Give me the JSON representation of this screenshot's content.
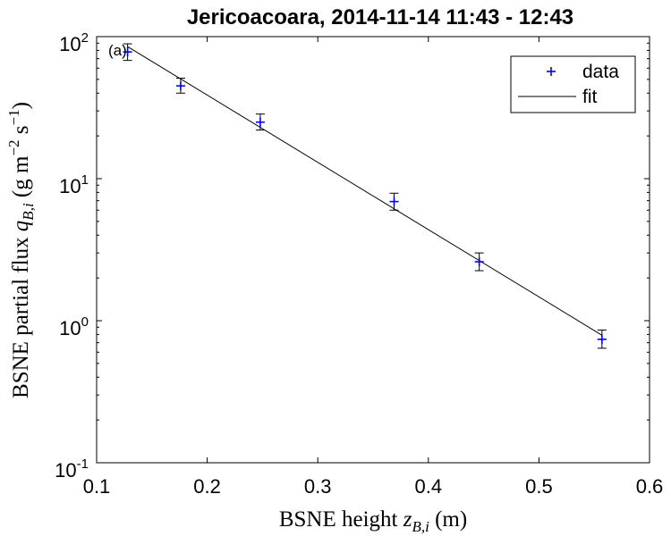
{
  "chart_data": {
    "type": "scatter",
    "title": "Jericoacoara, 2014-11-14 11:43 - 12:43",
    "panel_label": "(a)",
    "xlabel": {
      "prefix": "BSNE height ",
      "var": "z",
      "sub": "B,i",
      "suffix": " (m)"
    },
    "ylabel": {
      "prefix": "BSNE partial flux ",
      "var": "q",
      "sub": "B,i",
      "units_open": " (g m",
      "exp1": "−2",
      "units_mid": " s",
      "exp2": "−1",
      "units_close": ")"
    },
    "xlim": [
      0.1,
      0.6
    ],
    "ylim": [
      0.1,
      100
    ],
    "yscale": "log",
    "grid": false,
    "legend_position": "top-right",
    "x_ticks": [
      "0.1",
      "0.2",
      "0.3",
      "0.4",
      "0.5",
      "0.6"
    ],
    "y_ticks": [
      {
        "value": 0.1,
        "base": "10",
        "exp": "-1"
      },
      {
        "value": 1,
        "base": "10",
        "exp": "0"
      },
      {
        "value": 10,
        "base": "10",
        "exp": "1"
      },
      {
        "value": 100,
        "base": "10",
        "exp": "2"
      }
    ],
    "series": [
      {
        "name": "data",
        "marker": "+",
        "color": "#0000ff",
        "points": [
          {
            "x": 0.128,
            "y": 78.0,
            "ylow": 68.0,
            "yhigh": 89.0
          },
          {
            "x": 0.176,
            "y": 45.0,
            "ylow": 40.0,
            "yhigh": 51.0
          },
          {
            "x": 0.248,
            "y": 25.0,
            "ylow": 22.0,
            "yhigh": 28.5
          },
          {
            "x": 0.369,
            "y": 6.9,
            "ylow": 6.0,
            "yhigh": 7.9
          },
          {
            "x": 0.446,
            "y": 2.6,
            "ylow": 2.25,
            "yhigh": 3.0
          },
          {
            "x": 0.557,
            "y": 0.74,
            "ylow": 0.64,
            "yhigh": 0.86
          }
        ]
      },
      {
        "name": "fit",
        "color": "#000000",
        "line": {
          "x": [
            0.128,
            0.557
          ],
          "y": [
            85.0,
            0.79
          ]
        }
      }
    ]
  }
}
